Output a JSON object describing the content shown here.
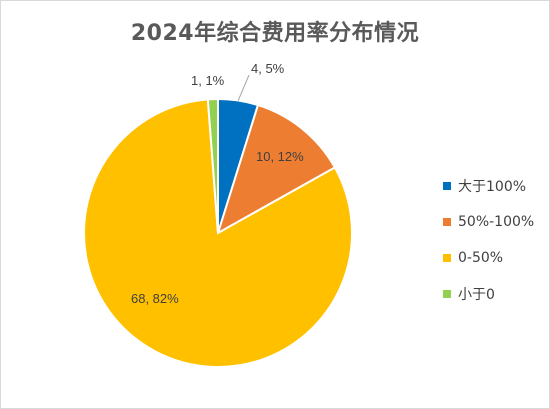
{
  "chart_data": {
    "type": "pie",
    "title": "2024年综合费用率分布情况",
    "start_angle_deg": 0,
    "direction": "clockwise",
    "legend_position": "right",
    "slices": [
      {
        "name": "大于100%",
        "value": 4,
        "percent_label": "5%",
        "color": "#0070C0"
      },
      {
        "name": "50%-100%",
        "value": 10,
        "percent_label": "12%",
        "color": "#ED7D31"
      },
      {
        "name": "0-50%",
        "value": 68,
        "percent_label": "82%",
        "color": "#FFC000"
      },
      {
        "name": "小于0",
        "value": 1,
        "percent_label": "1%",
        "color": "#92D050"
      }
    ],
    "data_labels": [
      "4, 5%",
      "10, 12%",
      "68, 82%",
      "1, 1%"
    ]
  }
}
